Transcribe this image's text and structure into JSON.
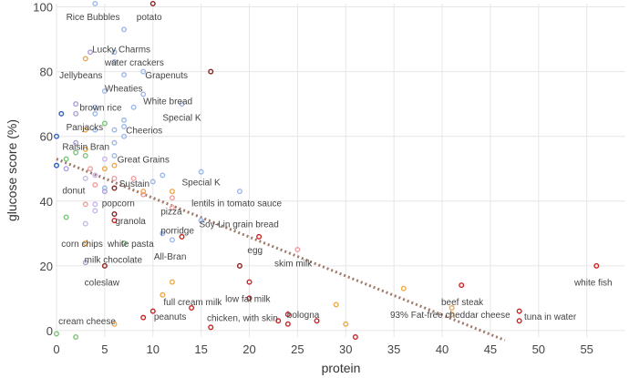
{
  "chart_data": {
    "type": "scatter",
    "xlabel": "protein",
    "ylabel": "glucose score (%)",
    "xlim": [
      0,
      59
    ],
    "ylim": [
      -2,
      101
    ],
    "x_ticks": [
      "0",
      "5",
      "10",
      "15",
      "20",
      "25",
      "30",
      "35",
      "40",
      "45",
      "50",
      "55"
    ],
    "y_ticks": [
      "0",
      "20",
      "40",
      "60",
      "80",
      "100"
    ],
    "grid": true,
    "trendline": {
      "x1": 0,
      "y1": 53,
      "x2": 46.5,
      "y2": -3,
      "color": "#a07a6a",
      "style": "dotted"
    },
    "colors": {
      "blue": "#9db8e8",
      "orange": "#f0a84c",
      "green": "#7cc47c",
      "red": "#cc2222",
      "pink": "#f0a0a0",
      "purple": "#b0a0d8",
      "lilac": "#c8b8e8",
      "darkblue": "#3060c0",
      "darkred": "#882222"
    },
    "points": [
      {
        "x": 4,
        "y": 101,
        "c": "blue"
      },
      {
        "x": 10,
        "y": 101,
        "c": "darkred"
      },
      {
        "x": 7,
        "y": 93,
        "c": "blue"
      },
      {
        "x": 3.5,
        "y": 86,
        "c": "purple"
      },
      {
        "x": 6,
        "y": 86,
        "c": "blue"
      },
      {
        "x": 3,
        "y": 84,
        "c": "orange"
      },
      {
        "x": 6,
        "y": 83,
        "c": "blue"
      },
      {
        "x": 9,
        "y": 80,
        "c": "blue"
      },
      {
        "x": 16,
        "y": 80,
        "c": "darkred"
      },
      {
        "x": 7,
        "y": 79,
        "c": "blue"
      },
      {
        "x": 5,
        "y": 74,
        "c": "blue"
      },
      {
        "x": 9,
        "y": 73,
        "c": "blue"
      },
      {
        "x": 2,
        "y": 70,
        "c": "purple"
      },
      {
        "x": 4,
        "y": 69,
        "c": "blue"
      },
      {
        "x": 13,
        "y": 70,
        "c": "blue"
      },
      {
        "x": 8,
        "y": 69,
        "c": "blue"
      },
      {
        "x": 0.5,
        "y": 67,
        "c": "darkblue"
      },
      {
        "x": 2,
        "y": 67,
        "c": "purple"
      },
      {
        "x": 4,
        "y": 67,
        "c": "blue"
      },
      {
        "x": 5,
        "y": 64,
        "c": "green"
      },
      {
        "x": 7,
        "y": 65,
        "c": "blue"
      },
      {
        "x": 7,
        "y": 63,
        "c": "blue"
      },
      {
        "x": 3,
        "y": 62,
        "c": "orange"
      },
      {
        "x": 4,
        "y": 62,
        "c": "blue"
      },
      {
        "x": 6,
        "y": 62,
        "c": "blue"
      },
      {
        "x": 7,
        "y": 60,
        "c": "blue"
      },
      {
        "x": 0,
        "y": 60,
        "c": "darkblue"
      },
      {
        "x": 6,
        "y": 58,
        "c": "blue"
      },
      {
        "x": 2,
        "y": 58,
        "c": "purple"
      },
      {
        "x": 3,
        "y": 56,
        "c": "orange"
      },
      {
        "x": 2,
        "y": 55,
        "c": "green"
      },
      {
        "x": 3,
        "y": 54,
        "c": "green"
      },
      {
        "x": 6,
        "y": 54,
        "c": "blue"
      },
      {
        "x": 5,
        "y": 53,
        "c": "lilac"
      },
      {
        "x": 1,
        "y": 53,
        "c": "green"
      },
      {
        "x": 0,
        "y": 51,
        "c": "darkblue"
      },
      {
        "x": 1,
        "y": 50,
        "c": "purple"
      },
      {
        "x": 3.5,
        "y": 50,
        "c": "pink"
      },
      {
        "x": 5,
        "y": 50,
        "c": "orange"
      },
      {
        "x": 6,
        "y": 51,
        "c": "orange"
      },
      {
        "x": 4,
        "y": 48,
        "c": "lilac"
      },
      {
        "x": 15,
        "y": 49,
        "c": "blue"
      },
      {
        "x": 11,
        "y": 48,
        "c": "blue"
      },
      {
        "x": 6,
        "y": 47,
        "c": "pink"
      },
      {
        "x": 8,
        "y": 47,
        "c": "pink"
      },
      {
        "x": 10,
        "y": 46,
        "c": "blue"
      },
      {
        "x": 3,
        "y": 47,
        "c": "lilac"
      },
      {
        "x": 4,
        "y": 45,
        "c": "pink"
      },
      {
        "x": 5,
        "y": 44,
        "c": "blue"
      },
      {
        "x": 6,
        "y": 44,
        "c": "darkred"
      },
      {
        "x": 5,
        "y": 43,
        "c": "purple"
      },
      {
        "x": 9,
        "y": 42,
        "c": "pink"
      },
      {
        "x": 9,
        "y": 43,
        "c": "orange"
      },
      {
        "x": 12,
        "y": 43,
        "c": "orange"
      },
      {
        "x": 12,
        "y": 41,
        "c": "pink"
      },
      {
        "x": 19,
        "y": 43,
        "c": "blue"
      },
      {
        "x": 12,
        "y": 38,
        "c": "pink"
      },
      {
        "x": 3,
        "y": 39,
        "c": "pink"
      },
      {
        "x": 4,
        "y": 39,
        "c": "lilac"
      },
      {
        "x": 4,
        "y": 37,
        "c": "lilac"
      },
      {
        "x": 6,
        "y": 36,
        "c": "darkred"
      },
      {
        "x": 1,
        "y": 35,
        "c": "green"
      },
      {
        "x": 6,
        "y": 34,
        "c": "red"
      },
      {
        "x": 3,
        "y": 33,
        "c": "lilac"
      },
      {
        "x": 15,
        "y": 34,
        "c": "blue"
      },
      {
        "x": 11,
        "y": 30,
        "c": "blue"
      },
      {
        "x": 12,
        "y": 28,
        "c": "blue"
      },
      {
        "x": 13,
        "y": 29,
        "c": "red"
      },
      {
        "x": 21,
        "y": 29,
        "c": "red"
      },
      {
        "x": 3,
        "y": 27,
        "c": "orange"
      },
      {
        "x": 7,
        "y": 27,
        "c": "green"
      },
      {
        "x": 25,
        "y": 25,
        "c": "pink"
      },
      {
        "x": 3,
        "y": 21,
        "c": "purple"
      },
      {
        "x": 5,
        "y": 20,
        "c": "darkred"
      },
      {
        "x": 19,
        "y": 20,
        "c": "darkred"
      },
      {
        "x": 56,
        "y": 20,
        "c": "red"
      },
      {
        "x": 12,
        "y": 15,
        "c": "orange"
      },
      {
        "x": 20,
        "y": 15,
        "c": "red"
      },
      {
        "x": 36,
        "y": 13,
        "c": "orange"
      },
      {
        "x": 42,
        "y": 14,
        "c": "red"
      },
      {
        "x": 11,
        "y": 11,
        "c": "orange"
      },
      {
        "x": 20,
        "y": 10,
        "c": "red"
      },
      {
        "x": 29,
        "y": 8,
        "c": "orange"
      },
      {
        "x": 14,
        "y": 7,
        "c": "red"
      },
      {
        "x": 10,
        "y": 6,
        "c": "red"
      },
      {
        "x": 48,
        "y": 6,
        "c": "red"
      },
      {
        "x": 41,
        "y": 7,
        "c": "orange"
      },
      {
        "x": 9,
        "y": 4,
        "c": "red"
      },
      {
        "x": 24,
        "y": 5,
        "c": "red"
      },
      {
        "x": 27,
        "y": 3,
        "c": "red"
      },
      {
        "x": 41,
        "y": 5,
        "c": "orange"
      },
      {
        "x": 48,
        "y": 3,
        "c": "red"
      },
      {
        "x": 23,
        "y": 3,
        "c": "red"
      },
      {
        "x": 24,
        "y": 2,
        "c": "red"
      },
      {
        "x": 30,
        "y": 2,
        "c": "orange"
      },
      {
        "x": 16,
        "y": 1,
        "c": "red"
      },
      {
        "x": 6,
        "y": 2,
        "c": "orange"
      },
      {
        "x": 31,
        "y": -2,
        "c": "red"
      },
      {
        "x": 0,
        "y": -1,
        "c": "green"
      },
      {
        "x": 2,
        "y": -2,
        "c": "green"
      }
    ],
    "annotations": [
      {
        "text": "Rice Bubbles",
        "x": 1,
        "y": 97
      },
      {
        "text": "potato",
        "x": 8.3,
        "y": 97
      },
      {
        "text": "Lucky Charms",
        "x": 3.7,
        "y": 87
      },
      {
        "text": "water crackers",
        "x": 5,
        "y": 83
      },
      {
        "text": "Jellybeans",
        "x": 0.3,
        "y": 79
      },
      {
        "text": "Grapenuts",
        "x": 9.2,
        "y": 79
      },
      {
        "text": "Wheaties",
        "x": 5,
        "y": 75
      },
      {
        "text": "White bread",
        "x": 9,
        "y": 71
      },
      {
        "text": "brown rice",
        "x": 2.4,
        "y": 69
      },
      {
        "text": "Special K",
        "x": 11,
        "y": 66
      },
      {
        "text": "Panjacks",
        "x": 1,
        "y": 63
      },
      {
        "text": "Cheerios",
        "x": 7.2,
        "y": 62
      },
      {
        "text": "Raisin Bran",
        "x": 0.6,
        "y": 57
      },
      {
        "text": "Great Grains",
        "x": 6.3,
        "y": 53
      },
      {
        "text": "Sustain",
        "x": 6.5,
        "y": 45.5
      },
      {
        "text": "Special K",
        "x": 13,
        "y": 46
      },
      {
        "text": "donut",
        "x": 0.6,
        "y": 43.5
      },
      {
        "text": "popcorn",
        "x": 4.7,
        "y": 39.5
      },
      {
        "text": "lentils in tomato sauce",
        "x": 14,
        "y": 39.5
      },
      {
        "text": "pizza",
        "x": 10.8,
        "y": 37
      },
      {
        "text": "granola",
        "x": 6.1,
        "y": 34
      },
      {
        "text": "Soy-Lin grain bread",
        "x": 14.8,
        "y": 33
      },
      {
        "text": "porridge",
        "x": 10.8,
        "y": 31
      },
      {
        "text": "corn chips",
        "x": 0.5,
        "y": 27
      },
      {
        "text": "white pasta",
        "x": 5.3,
        "y": 27
      },
      {
        "text": "egg",
        "x": 19.8,
        "y": 25
      },
      {
        "text": "All-Bran",
        "x": 10.1,
        "y": 23
      },
      {
        "text": "milk chocolate",
        "x": 2.9,
        "y": 22
      },
      {
        "text": "skim milk",
        "x": 22.6,
        "y": 21
      },
      {
        "text": "coleslaw",
        "x": 2.9,
        "y": 15
      },
      {
        "text": "white fish",
        "x": 53.7,
        "y": 15
      },
      {
        "text": "low fat milk",
        "x": 17.5,
        "y": 10
      },
      {
        "text": "beef steak",
        "x": 39.9,
        "y": 9
      },
      {
        "text": "full cream milk",
        "x": 11.1,
        "y": 9
      },
      {
        "text": "93% Fat-free cheddar cheese",
        "x": 34.6,
        "y": 5
      },
      {
        "text": "bologna",
        "x": 23.9,
        "y": 5
      },
      {
        "text": "peanuts",
        "x": 10.1,
        "y": 4.5
      },
      {
        "text": "tuna in water",
        "x": 48.5,
        "y": 4.5
      },
      {
        "text": "chicken, with skin",
        "x": 15.6,
        "y": 4
      },
      {
        "text": "cream cheese",
        "x": 0.2,
        "y": 3
      }
    ]
  }
}
